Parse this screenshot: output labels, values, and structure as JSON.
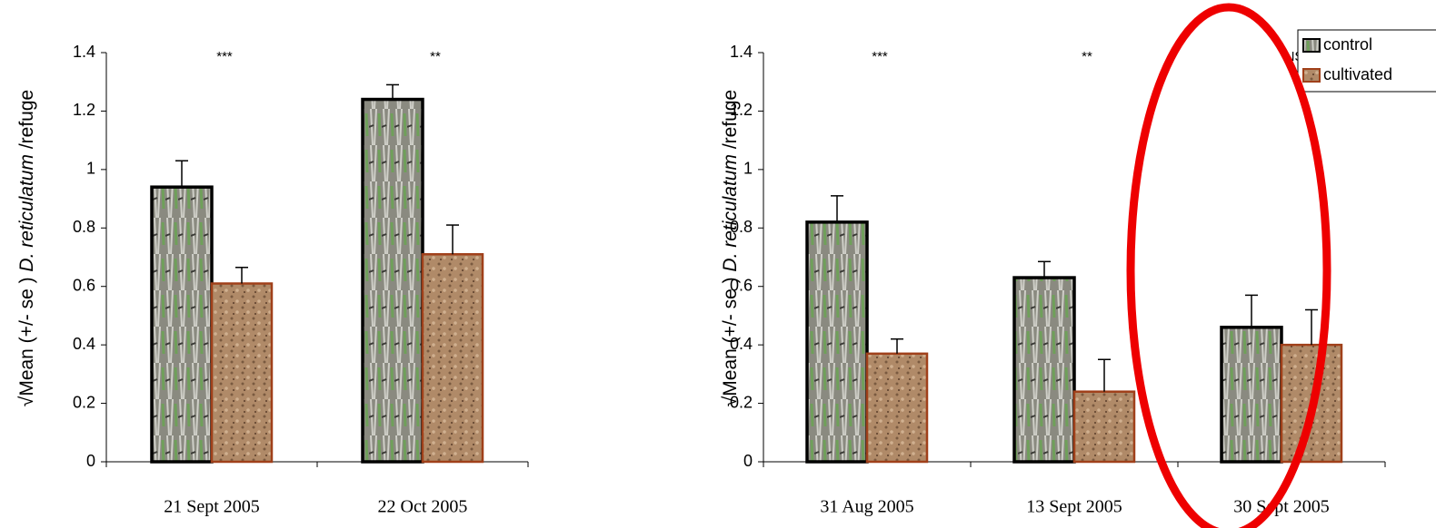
{
  "chart_data": [
    {
      "type": "bar",
      "y_label": [
        "√Mean (+/- se ) ",
        "D. reticulatum",
        " /refuge"
      ],
      "categories": [
        "21 Sept 2005",
        "22 Oct 2005"
      ],
      "annotations": [
        "***",
        "**"
      ],
      "series": [
        {
          "color": "#000000",
          "values": [
            0.94,
            1.24
          ],
          "errors": [
            0.09,
            0.05
          ]
        },
        {
          "color": "#a0401a",
          "values": [
            0.61,
            0.71
          ],
          "errors": [
            0.055,
            0.1
          ]
        }
      ],
      "ylim": [
        0,
        1.4
      ],
      "yticks": [
        0,
        0.2,
        0.4,
        0.6,
        0.8,
        1,
        1.2,
        1.4
      ]
    },
    {
      "type": "bar",
      "y_label": [
        "√Mean (+/- se ) ",
        "D. reticulatum",
        " /refuge"
      ],
      "categories": [
        "31 Aug 2005",
        "13 Sept 2005",
        "30 Sept 2005"
      ],
      "annotations": [
        "***",
        "**",
        "NS"
      ],
      "series": [
        {
          "name": "control",
          "color": "#000000",
          "values": [
            0.82,
            0.63,
            0.46
          ],
          "errors": [
            0.09,
            0.055,
            0.11
          ]
        },
        {
          "name": "cultivated",
          "color": "#a0401a",
          "values": [
            0.37,
            0.24,
            0.4
          ],
          "errors": [
            0.05,
            0.11,
            0.12
          ]
        }
      ],
      "ylim": [
        0,
        1.4
      ],
      "yticks": [
        0,
        0.2,
        0.4,
        0.6,
        0.8,
        1,
        1.2,
        1.4
      ],
      "legend": "upper right"
    }
  ]
}
